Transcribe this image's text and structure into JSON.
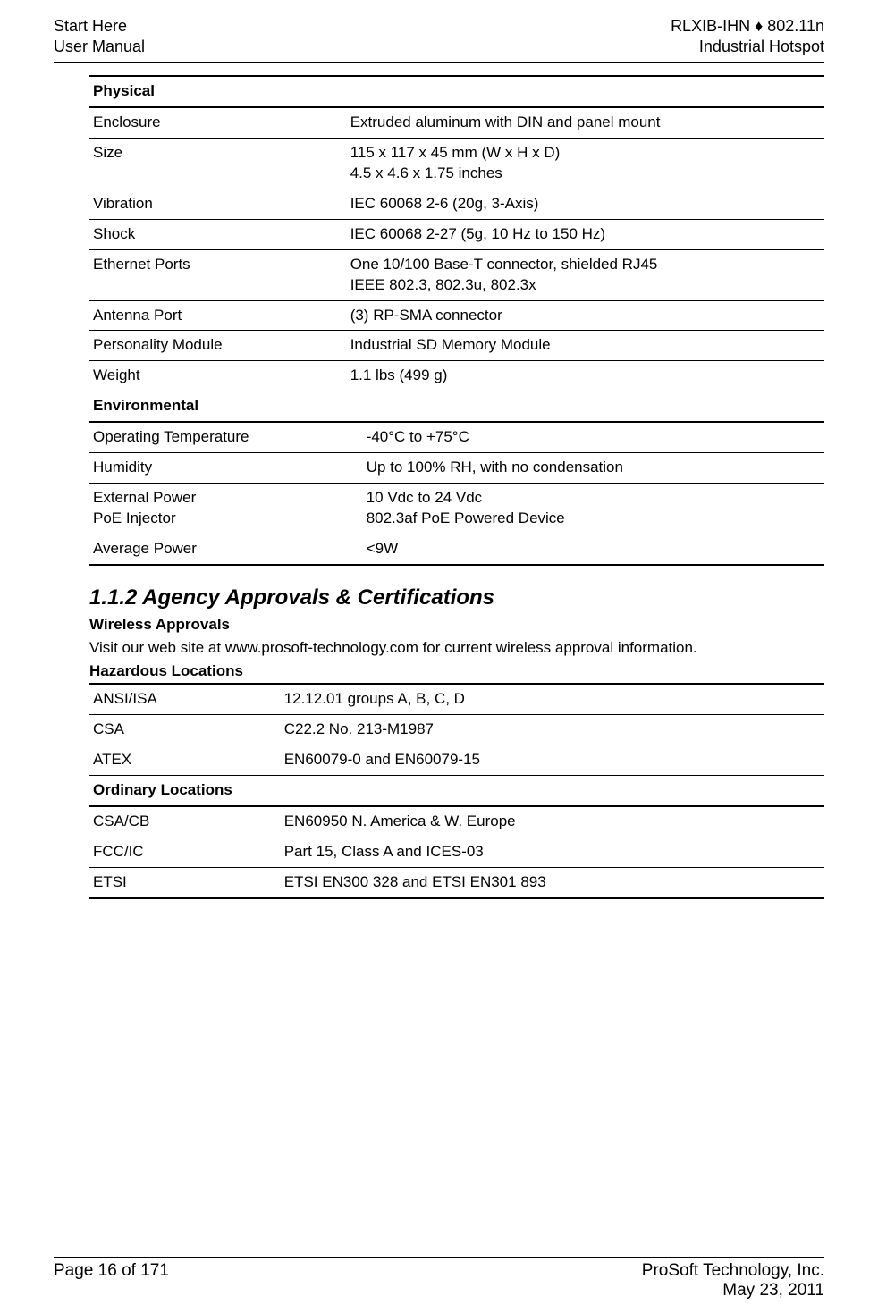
{
  "header": {
    "left_line1": "Start Here",
    "left_line2": "User Manual",
    "right_line1": "RLXIB-IHN ♦ 802.11n",
    "right_line2": "Industrial Hotspot"
  },
  "physical": {
    "section_label": "Physical",
    "rows": [
      {
        "label": "Enclosure",
        "value": "Extruded aluminum with DIN and panel mount"
      },
      {
        "label": "Size",
        "value": "115  x 117 x 45 mm (W x H x D)\n4.5 x 4.6 x 1.75 inches"
      },
      {
        "label": "Vibration",
        "value": "IEC 60068 2-6 (20g, 3-Axis)"
      },
      {
        "label": "Shock",
        "value": "IEC 60068 2-27 (5g, 10 Hz to 150 Hz)"
      },
      {
        "label": "Ethernet Ports",
        "value": "One 10/100 Base-T connector, shielded RJ45\nIEEE 802.3, 802.3u, 802.3x"
      },
      {
        "label": "Antenna Port",
        "value": "(3) RP-SMA connector"
      },
      {
        "label": "Personality Module",
        "value": "Industrial SD Memory Module"
      },
      {
        "label": "Weight",
        "value": "1.1 lbs (499 g)"
      }
    ],
    "env_label": "Environmental",
    "env_rows": [
      {
        "label": "Operating Temperature",
        "value": "-40°C to +75°C"
      },
      {
        "label": "Humidity",
        "value": "Up to 100% RH, with no condensation"
      },
      {
        "label": "External Power\nPoE Injector",
        "value": "10 Vdc to 24 Vdc\n802.3af PoE Powered Device"
      },
      {
        "label": "Average Power",
        "value": "<9W"
      }
    ]
  },
  "section": {
    "number_and_title": "1.1.2   Agency Approvals & Certifications",
    "wireless_heading": "Wireless Approvals",
    "wireless_text": "Visit our web site at www.prosoft-technology.com for current wireless approval information.",
    "hazloc_heading": "Hazardous Locations"
  },
  "hazloc": {
    "rows": [
      {
        "label": "ANSI/ISA",
        "value": "12.12.01 groups A, B, C, D"
      },
      {
        "label": "CSA",
        "value": "C22.2 No. 213-M1987"
      },
      {
        "label": "ATEX",
        "value": "EN60079-0 and EN60079-15"
      }
    ],
    "ord_label": "Ordinary Locations",
    "ord_rows": [
      {
        "label": "CSA/CB",
        "value": "EN60950 N. America & W. Europe"
      },
      {
        "label": "FCC/IC",
        "value": "Part 15, Class A and ICES-03"
      },
      {
        "label": "ETSI",
        "value": "ETSI EN300 328 and ETSI EN301 893"
      }
    ]
  },
  "footer": {
    "left": "Page 16 of 171",
    "right_line1": "ProSoft Technology, Inc.",
    "right_line2": "May 23, 2011"
  }
}
